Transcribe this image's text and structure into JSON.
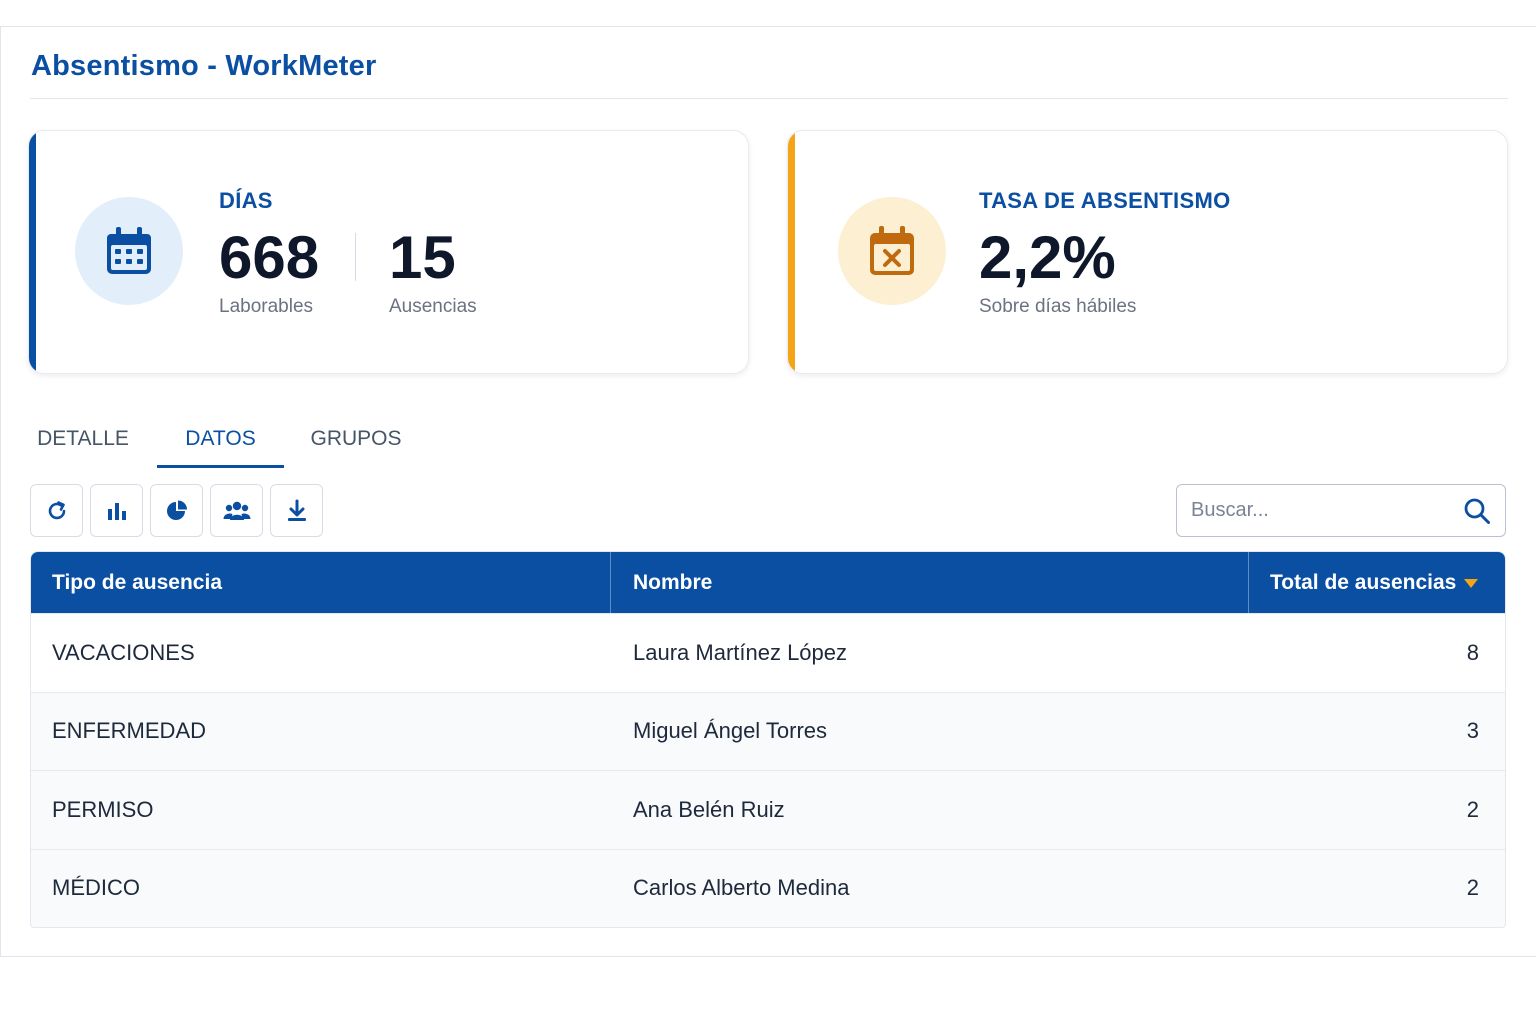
{
  "app": {
    "title": "Absentismo - WorkMeter"
  },
  "kpis": {
    "days": {
      "label": "DÍAS",
      "icon": "calendar-icon",
      "laborables_value": "668",
      "laborables_label": "Laborables",
      "ausencias_value": "15",
      "ausencias_label": "Ausencias",
      "accent": "#0b4fa3"
    },
    "rate": {
      "label": "TASA DE ABSENTISMO",
      "icon": "calendar-x-icon",
      "value": "2,2%",
      "sub": "Sobre días hábiles",
      "accent": "#f4a417"
    }
  },
  "tabs": [
    {
      "label": "DETALLE",
      "active": false
    },
    {
      "label": "DATOS",
      "active": true
    },
    {
      "label": "GRUPOS",
      "active": false
    }
  ],
  "toolbar": {
    "buttons": [
      "refresh-icon",
      "bar-chart-icon",
      "pie-chart-icon",
      "users-icon",
      "download-icon"
    ]
  },
  "search": {
    "placeholder": "Buscar...",
    "value": ""
  },
  "table": {
    "columns": [
      "Tipo de ausencia",
      "Nombre",
      "Total de ausencias"
    ],
    "sorted_column": "Total de ausencias",
    "sort_direction": "desc",
    "rows": [
      {
        "tipo": "VACACIONES",
        "nombre": "Laura Martínez López",
        "total": "8"
      },
      {
        "tipo": "ENFERMEDAD",
        "nombre": "Miguel Ángel Torres",
        "total": "3"
      },
      {
        "tipo": "PERMISO",
        "nombre": "Ana Belén Ruiz",
        "total": "2"
      },
      {
        "tipo": "MÉDICO",
        "nombre": "Carlos Alberto Medina",
        "total": "2"
      }
    ]
  },
  "colors": {
    "primary": "#0b4fa3",
    "warning": "#f4a417"
  }
}
